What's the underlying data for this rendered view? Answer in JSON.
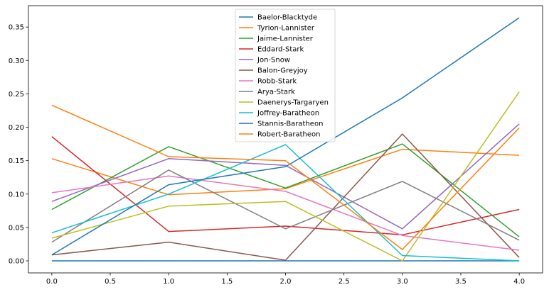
{
  "chart_data": {
    "type": "line",
    "title": "",
    "xlabel": "",
    "ylabel": "",
    "x": [
      0,
      1,
      2,
      3,
      4
    ],
    "xlim": [
      -0.2,
      4.2
    ],
    "ylim": [
      -0.018,
      0.382
    ],
    "xticks": [
      "0.0",
      "0.5",
      "1.0",
      "1.5",
      "2.0",
      "2.5",
      "3.0",
      "3.5",
      "4.0"
    ],
    "yticks": [
      "0.00",
      "0.05",
      "0.10",
      "0.15",
      "0.20",
      "0.25",
      "0.30",
      "0.35"
    ],
    "grid": false,
    "legend_position": "top-center",
    "series": [
      {
        "name": "Baelor-Blacktyde",
        "color": "#1f77b4",
        "values": [
          0.0,
          0.0,
          0.0,
          0.0,
          0.0
        ]
      },
      {
        "name": "Tyrion-Lannister",
        "color": "#ff7f0e",
        "values": [
          0.153,
          0.099,
          0.108,
          0.167,
          0.158
        ]
      },
      {
        "name": "Jaime-Lannister",
        "color": "#2ca02c",
        "values": [
          0.077,
          0.171,
          0.109,
          0.175,
          0.036
        ]
      },
      {
        "name": "Eddard-Stark",
        "color": "#d62728",
        "values": [
          0.186,
          0.044,
          0.052,
          0.039,
          0.077
        ]
      },
      {
        "name": "Jon-Snow",
        "color": "#9467bd",
        "values": [
          0.089,
          0.153,
          0.143,
          0.048,
          0.205
        ]
      },
      {
        "name": "Balon-Greyjoy",
        "color": "#8c564b",
        "values": [
          0.009,
          0.028,
          0.001,
          0.19,
          0.005
        ]
      },
      {
        "name": "Robb-Stark",
        "color": "#e377c2",
        "values": [
          0.102,
          0.127,
          0.104,
          0.038,
          0.016
        ]
      },
      {
        "name": "Arya-Stark",
        "color": "#7f7f7f",
        "values": [
          0.028,
          0.136,
          0.048,
          0.119,
          0.031
        ]
      },
      {
        "name": "Daenerys-Targaryen",
        "color": "#bcbd22",
        "values": [
          0.034,
          0.082,
          0.089,
          0.0,
          0.253
        ]
      },
      {
        "name": "Joffrey-Baratheon",
        "color": "#17becf",
        "values": [
          0.042,
          0.1,
          0.174,
          0.008,
          0.0
        ]
      },
      {
        "name": "Stannis-Baratheon",
        "color": "#1f77b4",
        "values": [
          0.009,
          0.114,
          0.141,
          0.244,
          0.364
        ]
      },
      {
        "name": "Robert-Baratheon",
        "color": "#ff7f0e",
        "values": [
          0.233,
          0.156,
          0.15,
          0.017,
          0.199
        ]
      }
    ]
  }
}
